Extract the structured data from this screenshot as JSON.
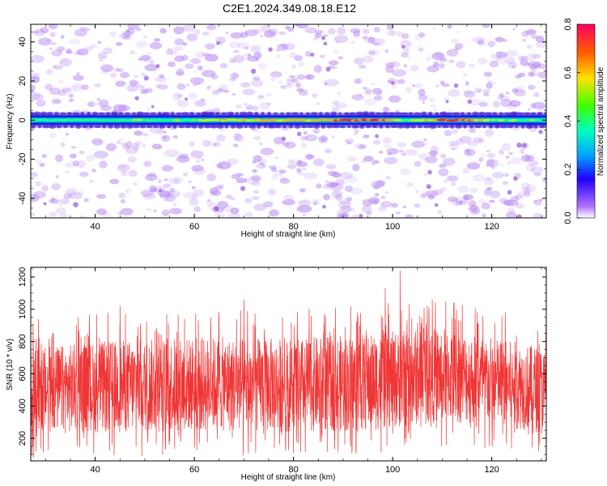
{
  "title": "C2E1.2024.349.08.18.E12",
  "colors": {
    "snr_series": "#f03535",
    "background_speckle": "#b98cf0",
    "band_core": "#ff2020"
  },
  "chart_data": [
    {
      "type": "heatmap",
      "xlabel": "Height of straight line (km)",
      "ylabel": "Frequency (Hz)",
      "xlim": [
        27,
        131
      ],
      "ylim": [
        -50,
        49
      ],
      "x_ticks": [
        40,
        60,
        80,
        100,
        120
      ],
      "y_ticks": [
        -40,
        -20,
        0,
        20,
        40
      ],
      "band": {
        "center_frequency": 0,
        "half_width": 3,
        "description_points": [
          {
            "height": 27,
            "level": 0.45
          },
          {
            "height": 40,
            "level": 0.45
          },
          {
            "height": 55,
            "level": 0.5
          },
          {
            "height": 70,
            "level": 0.62
          },
          {
            "height": 85,
            "level": 0.68
          },
          {
            "height": 97,
            "level": 0.78
          },
          {
            "height": 103,
            "level": 0.5
          },
          {
            "height": 113,
            "level": 0.8
          },
          {
            "height": 120,
            "level": 0.55
          },
          {
            "height": 131,
            "level": 0.45
          }
        ]
      },
      "colorbar": {
        "label": "Normalized spectral amplitude",
        "range": [
          0.0,
          0.8
        ],
        "ticks": [
          "0.0",
          "0.2",
          "0.4",
          "0.6",
          "0.8"
        ]
      }
    },
    {
      "type": "line",
      "xlabel": "Height of straight line (km)",
      "ylabel": "SNR (10 * v/v)",
      "xlim": [
        27,
        131
      ],
      "ylim": [
        60,
        1260
      ],
      "x_ticks": [
        40,
        60,
        80,
        100,
        120
      ],
      "y_ticks": [
        200,
        400,
        600,
        800,
        1000,
        1200
      ],
      "series": [
        {
          "color": "#f03535",
          "envelope": [
            {
              "height": 27,
              "low": 230,
              "high": 760
            },
            {
              "height": 40,
              "low": 230,
              "high": 800
            },
            {
              "height": 60,
              "low": 240,
              "high": 830
            },
            {
              "height": 80,
              "low": 240,
              "high": 820
            },
            {
              "height": 95,
              "low": 240,
              "high": 850
            },
            {
              "height": 110,
              "low": 300,
              "high": 890
            },
            {
              "height": 120,
              "low": 280,
              "high": 830
            },
            {
              "height": 131,
              "low": 230,
              "high": 760
            }
          ],
          "peaks": [
            {
              "height": 101.5,
              "value": 1240
            },
            {
              "height": 98.5,
              "value": 1130
            },
            {
              "height": 45,
              "value": 1020
            },
            {
              "height": 70,
              "value": 1060
            },
            {
              "height": 108,
              "value": 1060
            },
            {
              "height": 105.5,
              "value": 960
            }
          ]
        }
      ]
    }
  ]
}
